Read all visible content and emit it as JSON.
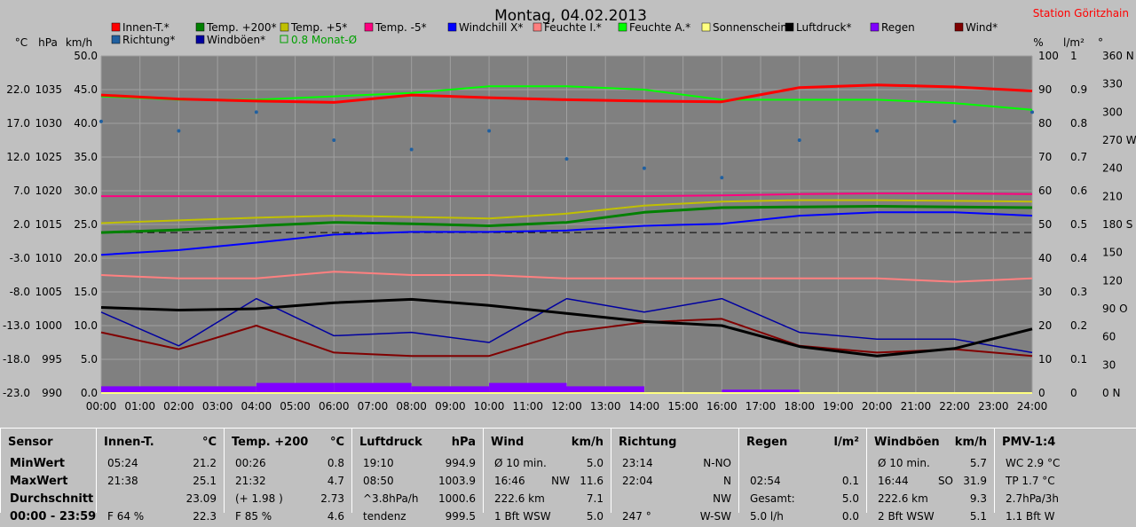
{
  "header": {
    "title": "Montag, 04.02.2013",
    "station": "Station Göritzhain"
  },
  "colors": {
    "background": "#c0c0c0",
    "plot_bg": "#808080",
    "grid": "#a0a0a0",
    "station": "#ff0000"
  },
  "axes": {
    "left_units": [
      "°C",
      "hPa",
      "km/h"
    ],
    "right_units": [
      "%",
      "l/m²",
      "°"
    ],
    "temp_ticks": [
      "22.0",
      "17.0",
      "12.0",
      "7.0",
      "2.0",
      "-3.0",
      "-8.0",
      "-13.0",
      "-18.0",
      "-23.0"
    ],
    "hpa_ticks": [
      "1035",
      "1030",
      "1025",
      "1020",
      "1015",
      "1010",
      "1005",
      "1000",
      "995",
      "990"
    ],
    "kmh_ticks": [
      "50.0",
      "45.0",
      "40.0",
      "35.0",
      "30.0",
      "25.0",
      "20.0",
      "15.0",
      "10.0",
      "5.0",
      "0.0"
    ],
    "pct_ticks": [
      "100",
      "90",
      "80",
      "70",
      "60",
      "50",
      "40",
      "30",
      "20",
      "10",
      "0"
    ],
    "rain_ticks": [
      "1",
      "0.9",
      "0.8",
      "0.7",
      "0.6",
      "0.5",
      "0.4",
      "0.3",
      "0.2",
      "0.1",
      "0"
    ],
    "dir_ticks": [
      "360 N",
      "330",
      "300",
      "270 W",
      "240",
      "210",
      "180 S",
      "150",
      "120",
      "90  O",
      "60",
      "30",
      "0   N"
    ],
    "time_ticks": [
      "00:00",
      "01:00",
      "02:00",
      "03:00",
      "04:00",
      "05:00",
      "06:00",
      "07:00",
      "08:00",
      "09:00",
      "10:00",
      "11:00",
      "12:00",
      "13:00",
      "14:00",
      "15:00",
      "16:00",
      "17:00",
      "18:00",
      "19:00",
      "20:00",
      "21:00",
      "22:00",
      "23:00",
      "24:00"
    ]
  },
  "legend": [
    {
      "label": "Innen-T.*",
      "color": "#ff0000"
    },
    {
      "label": "Temp. +200*",
      "color": "#008000"
    },
    {
      "label": "Temp. +5*",
      "color": "#c0c000"
    },
    {
      "label": "Temp. -5*",
      "color": "#ff0080"
    },
    {
      "label": "Windchill X*",
      "color": "#0000ff"
    },
    {
      "label": "Feuchte I.*",
      "color": "#ff8080"
    },
    {
      "label": "Feuchte A.*",
      "color": "#00ff00"
    },
    {
      "label": "Sonnenschein",
      "color": "#ffff80"
    },
    {
      "label": "Luftdruck*",
      "color": "#000000"
    },
    {
      "label": "Regen",
      "color": "#8000ff"
    },
    {
      "label": "Wind*",
      "color": "#800000"
    },
    {
      "label": "Richtung*",
      "color": "#2060a0"
    },
    {
      "label": "Windböen*",
      "color": "#0000a0"
    },
    {
      "label": "0.8 Monat-Ø",
      "color": "#00a000"
    }
  ],
  "chart_data": {
    "type": "line",
    "x": [
      "00:00",
      "02:00",
      "04:00",
      "06:00",
      "08:00",
      "10:00",
      "12:00",
      "14:00",
      "16:00",
      "18:00",
      "20:00",
      "22:00",
      "24:00"
    ],
    "series": [
      {
        "name": "Innen-T.*",
        "axis": "temp",
        "values": [
          21.2,
          20.6,
          20.3,
          20.1,
          21.2,
          20.8,
          20.5,
          20.3,
          20.2,
          22.3,
          22.7,
          22.4,
          21.8
        ]
      },
      {
        "name": "Temp. +200*",
        "axis": "temp",
        "values": [
          0.8,
          1.2,
          1.8,
          2.3,
          2.1,
          1.8,
          2.3,
          3.8,
          4.5,
          4.6,
          4.7,
          4.6,
          4.5
        ]
      },
      {
        "name": "Temp. +5*",
        "axis": "temp",
        "values": [
          2.2,
          2.6,
          3.0,
          3.3,
          3.1,
          2.9,
          3.6,
          4.8,
          5.4,
          5.6,
          5.6,
          5.5,
          5.4
        ]
      },
      {
        "name": "Temp. -5*",
        "axis": "temp",
        "values": [
          6.2,
          6.2,
          6.2,
          6.2,
          6.2,
          6.2,
          6.2,
          6.2,
          6.3,
          6.5,
          6.6,
          6.6,
          6.5
        ]
      },
      {
        "name": "Windchill X*",
        "axis": "temp",
        "values": [
          -2.5,
          -1.8,
          -0.7,
          0.5,
          0.9,
          0.9,
          1.1,
          1.8,
          2.1,
          3.3,
          3.8,
          3.8,
          3.3
        ]
      },
      {
        "name": "Feuchte I.*",
        "axis": "pct",
        "values": [
          35,
          34,
          34,
          36,
          35,
          35,
          34,
          34,
          34,
          34,
          34,
          33,
          34
        ]
      },
      {
        "name": "Feuchte A.*",
        "axis": "pct",
        "values": [
          88,
          87,
          87,
          88,
          89,
          91,
          91,
          90,
          87,
          87,
          87,
          86,
          84
        ]
      },
      {
        "name": "Sonnenschein",
        "axis": "kmh",
        "values": [
          0,
          0,
          0,
          0,
          0,
          0,
          0,
          0,
          0,
          0,
          0,
          0,
          0
        ]
      },
      {
        "name": "Luftdruck*",
        "axis": "hpa",
        "values": [
          1002.7,
          1002.3,
          1002.5,
          1003.4,
          1003.9,
          1003.0,
          1001.8,
          1000.6,
          1000.0,
          996.9,
          995.5,
          996.6,
          999.5
        ]
      },
      {
        "name": "Wind*",
        "axis": "kmh",
        "values": [
          9.0,
          6.5,
          10.0,
          6.0,
          5.5,
          5.5,
          9.0,
          10.5,
          11.0,
          7.0,
          6.0,
          6.5,
          5.5
        ]
      },
      {
        "name": "Windböen*",
        "axis": "kmh",
        "values": [
          12.0,
          7.0,
          14.0,
          8.5,
          9.0,
          7.5,
          14.0,
          12.0,
          14.0,
          9.0,
          8.0,
          8.0,
          6.0
        ]
      },
      {
        "name": "Richtung*",
        "axis": "dir",
        "type": "scatter",
        "values": [
          290,
          280,
          300,
          270,
          260,
          280,
          250,
          240,
          230,
          270,
          280,
          290,
          300
        ]
      },
      {
        "name": "Regen",
        "axis": "rain",
        "type": "bar",
        "values": [
          0.02,
          0.02,
          0.03,
          0.03,
          0.02,
          0.03,
          0.02,
          0,
          0.01,
          0,
          0,
          0,
          0
        ]
      }
    ],
    "reference_line": {
      "name": "0.8 Monat-Ø",
      "axis": "temp",
      "value": 0.8
    },
    "ylim": {
      "temp": [
        -23,
        27
      ],
      "hpa": [
        990,
        1040
      ],
      "kmh": [
        0,
        50
      ],
      "pct": [
        0,
        100
      ],
      "rain": [
        0,
        1
      ],
      "dir": [
        0,
        360
      ]
    },
    "grid": true
  },
  "stats": {
    "sensor": {
      "title": "Sensor",
      "rows": [
        "MinWert",
        "MaxWert",
        "Durchschnitt",
        "00:00 - 23:59"
      ]
    },
    "panels": [
      {
        "title": "Innen-T.",
        "unit": "°C",
        "rows": [
          [
            "05:24",
            "",
            "21.2"
          ],
          [
            "21:38",
            "",
            "25.1"
          ],
          [
            "",
            "",
            "23.09"
          ],
          [
            "F 64 %",
            "",
            "22.3"
          ]
        ]
      },
      {
        "title": "Temp. +200",
        "unit": "°C",
        "rows": [
          [
            "00:26",
            "",
            "0.8"
          ],
          [
            "21:32",
            "",
            "4.7"
          ],
          [
            "(+ 1.98 )",
            "",
            "2.73"
          ],
          [
            "F 85 %",
            "",
            "4.6"
          ]
        ]
      },
      {
        "title": "Luftdruck",
        "unit": "hPa",
        "rows": [
          [
            "19:10",
            "",
            "994.9"
          ],
          [
            "08:50",
            "",
            "1003.9"
          ],
          [
            "^3.8hPa/h",
            "",
            "1000.6"
          ],
          [
            "tendenz",
            "",
            "999.5"
          ]
        ]
      },
      {
        "title": "Wind",
        "unit": "km/h",
        "rows": [
          [
            "Ø 10 min.",
            "",
            "5.0"
          ],
          [
            "16:46",
            "NW",
            "11.6"
          ],
          [
            "222.6 km",
            "",
            "7.1"
          ],
          [
            "1 Bft WSW",
            "",
            "5.0"
          ]
        ]
      },
      {
        "title": "Richtung",
        "unit": "",
        "rows": [
          [
            "23:14",
            "",
            "N-NO"
          ],
          [
            "22:04",
            "",
            "N"
          ],
          [
            "",
            "",
            "NW"
          ],
          [
            "247 °",
            "",
            "W-SW"
          ]
        ]
      },
      {
        "title": "Regen",
        "unit": "l/m²",
        "rows": [
          [
            "",
            "",
            ""
          ],
          [
            "02:54",
            "",
            "0.1"
          ],
          [
            "Gesamt:",
            "",
            "5.0"
          ],
          [
            "5.0 l/h",
            "",
            "0.0"
          ]
        ]
      },
      {
        "title": "Windböen",
        "unit": "km/h",
        "rows": [
          [
            "Ø 10 min.",
            "",
            "5.7"
          ],
          [
            "16:44",
            "SO",
            "31.9"
          ],
          [
            "222.6 km",
            "",
            "9.3"
          ],
          [
            "2 Bft WSW",
            "",
            "5.1"
          ]
        ]
      },
      {
        "title": "PMV-1:4",
        "unit": "",
        "rows": [
          [
            "WC 2.9 °C",
            "",
            ""
          ],
          [
            "TP 1.7 °C",
            "",
            ""
          ],
          [
            "2.7hPa/3h",
            "",
            ""
          ],
          [
            "1.1 Bft W",
            "",
            ""
          ]
        ]
      }
    ]
  }
}
